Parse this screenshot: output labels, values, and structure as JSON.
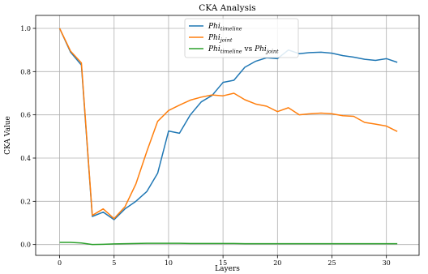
{
  "chart_data": {
    "type": "line",
    "title": "CKA Analysis",
    "xlabel": "Layers",
    "ylabel": "CKA Value",
    "xlim": [
      -2.2,
      33.0
    ],
    "ylim": [
      -0.05,
      1.06
    ],
    "xticks": [
      0,
      5,
      10,
      15,
      20,
      25,
      30
    ],
    "yticks": [
      0.0,
      0.2,
      0.4,
      0.6,
      0.8,
      1.0
    ],
    "xtick_labels": [
      "0",
      "5",
      "10",
      "15",
      "20",
      "25",
      "30"
    ],
    "ytick_labels": [
      "0.0",
      "0.2",
      "0.4",
      "0.6",
      "0.8",
      "1.0"
    ],
    "grid": true,
    "legend_position": "top-center",
    "x": [
      0,
      1,
      2,
      3,
      4,
      5,
      6,
      7,
      8,
      9,
      10,
      11,
      12,
      13,
      14,
      15,
      16,
      17,
      18,
      19,
      20,
      21,
      22,
      23,
      24,
      25,
      26,
      27,
      28,
      29,
      30,
      31
    ],
    "series": [
      {
        "name_main": "Phi",
        "name_sub": "timeline",
        "color": "#1f77b4",
        "values": [
          1.0,
          0.89,
          0.83,
          0.13,
          0.15,
          0.115,
          0.165,
          0.2,
          0.245,
          0.33,
          0.525,
          0.515,
          0.6,
          0.66,
          0.69,
          0.75,
          0.76,
          0.82,
          0.848,
          0.864,
          0.86,
          0.9,
          0.883,
          0.888,
          0.89,
          0.885,
          0.874,
          0.867,
          0.857,
          0.852,
          0.86,
          0.843
        ]
      },
      {
        "name_main": "Phi",
        "name_sub": "joint",
        "color": "#ff7f0e",
        "values": [
          1.0,
          0.895,
          0.84,
          0.135,
          0.165,
          0.12,
          0.175,
          0.28,
          0.43,
          0.57,
          0.62,
          0.645,
          0.668,
          0.682,
          0.692,
          0.688,
          0.7,
          0.67,
          0.65,
          0.64,
          0.615,
          0.633,
          0.6,
          0.605,
          0.608,
          0.605,
          0.596,
          0.593,
          0.565,
          0.557,
          0.548,
          0.523
        ]
      },
      {
        "name_main": "Phi",
        "name_sub": "timeline",
        "name_mid": " vs ",
        "name_main2": "Phi",
        "name_sub2": "joint",
        "color": "#2ca02c",
        "values": [
          0.01,
          0.01,
          0.007,
          0.0,
          0.001,
          0.003,
          0.004,
          0.005,
          0.006,
          0.006,
          0.006,
          0.006,
          0.005,
          0.005,
          0.005,
          0.005,
          0.005,
          0.004,
          0.004,
          0.004,
          0.004,
          0.004,
          0.004,
          0.004,
          0.004,
          0.004,
          0.004,
          0.004,
          0.004,
          0.004,
          0.004,
          0.004
        ]
      }
    ]
  }
}
